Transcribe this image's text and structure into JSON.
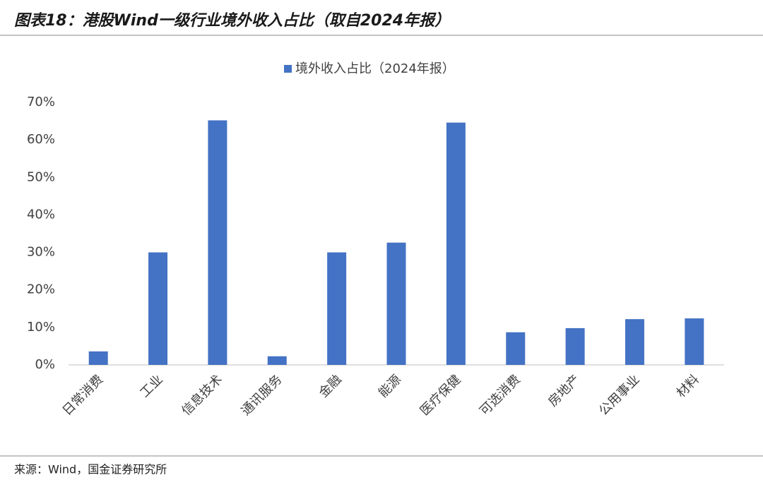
{
  "chart_data": {
    "type": "bar",
    "title": "图表18：港股Wind一级行业境外收入占比（取自2024年报）",
    "source": "来源：Wind，国金证券研究所",
    "categories": [
      "日常消费",
      "工业",
      "信息技术",
      "通讯服务",
      "金融",
      "能源",
      "医疗保健",
      "可选消费",
      "房地产",
      "公用事业",
      "材料"
    ],
    "series": [
      {
        "name": "境外收入占比（2024年报）",
        "color": "#4472c4",
        "values": [
          3.6,
          30,
          65.2,
          2.3,
          30,
          32.6,
          64.6,
          8.7,
          9.8,
          12.2,
          12.4
        ]
      }
    ],
    "ylim": [
      0,
      70
    ],
    "yticks": [
      {
        "value": 0,
        "label": "0%"
      },
      {
        "value": 10,
        "label": "10%"
      },
      {
        "value": 20,
        "label": "20%"
      },
      {
        "value": 30,
        "label": "30%"
      },
      {
        "value": 40,
        "label": "40%"
      },
      {
        "value": 50,
        "label": "50%"
      },
      {
        "value": 60,
        "label": "60%"
      },
      {
        "value": 70,
        "label": "70%"
      }
    ],
    "grid": false,
    "legend": "top"
  }
}
